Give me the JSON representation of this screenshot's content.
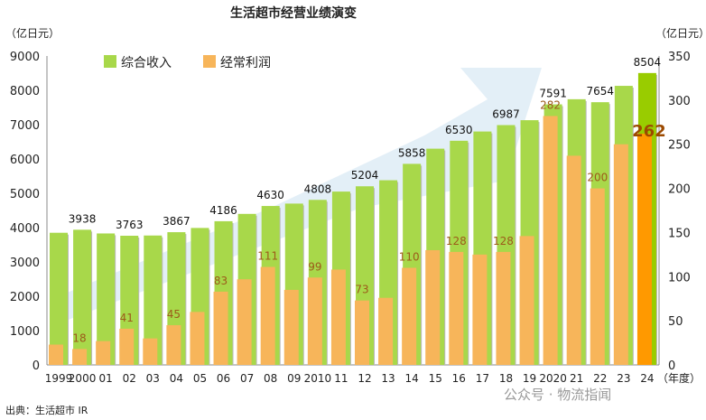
{
  "chart_data": {
    "type": "bar",
    "title": "生活超市经营业绩演变",
    "ylabel_left": "（亿日元）",
    "ylabel_right": "（亿日元）",
    "xlabel": "（年度）",
    "categories": [
      "1999",
      "2000",
      "01",
      "02",
      "03",
      "04",
      "05",
      "06",
      "07",
      "08",
      "09",
      "2010",
      "11",
      "12",
      "13",
      "14",
      "15",
      "16",
      "17",
      "18",
      "19",
      "2020",
      "21",
      "22",
      "23",
      "24"
    ],
    "series": [
      {
        "name": "综合收入",
        "axis": "left",
        "color": "#a8d84a",
        "values": [
          3850,
          3938,
          3830,
          3763,
          3770,
          3867,
          3990,
          4186,
          4400,
          4630,
          4700,
          4808,
          5050,
          5204,
          5380,
          5858,
          6300,
          6530,
          6800,
          6987,
          7130,
          7591,
          7740,
          7654,
          8130,
          8504
        ],
        "labels": [
          null,
          "3938",
          null,
          "3763",
          null,
          "3867",
          null,
          "4186",
          null,
          "4630",
          null,
          "4808",
          null,
          "5204",
          null,
          "5858",
          null,
          "6530",
          null,
          "6987",
          null,
          "7591",
          null,
          "7654",
          null,
          "8504"
        ]
      },
      {
        "name": "经常利润",
        "axis": "right",
        "color": "#f7b55a",
        "values": [
          23,
          18,
          27,
          41,
          30,
          45,
          60,
          83,
          97,
          111,
          85,
          99,
          108,
          73,
          76,
          110,
          130,
          128,
          125,
          128,
          146,
          282,
          237,
          200,
          250,
          262
        ],
        "labels": [
          null,
          "18",
          null,
          "41",
          null,
          "45",
          null,
          "83",
          null,
          "111",
          null,
          "99",
          null,
          "73",
          null,
          "110",
          null,
          "128",
          null,
          "128",
          null,
          "282",
          null,
          "200",
          null,
          "262"
        ]
      }
    ],
    "ylim_left": [
      0,
      9000
    ],
    "ylim_right": [
      0,
      350
    ],
    "yticks_left": [
      "0",
      "1000",
      "2000",
      "3000",
      "4000",
      "5000",
      "6000",
      "7000",
      "8000",
      "9000"
    ],
    "yticks_right": [
      "0",
      "50",
      "100",
      "150",
      "200",
      "250",
      "300",
      "350"
    ],
    "highlight_colors": {
      "revenue_latest": "#99cc00",
      "profit_latest": "#ff9900"
    },
    "legend_placement": "top-left",
    "grid": false
  },
  "source": "出典：生活超市  IR",
  "watermark": "公众号 · 物流指闻"
}
